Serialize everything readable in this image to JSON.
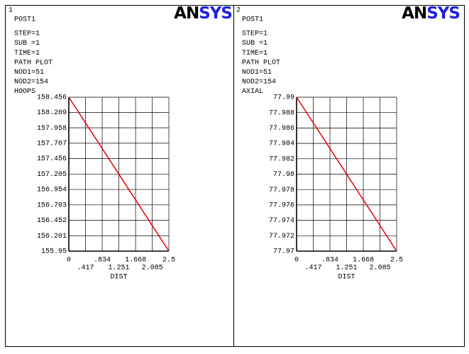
{
  "chart_data": [
    {
      "type": "line",
      "window": "1",
      "logo": [
        "AN",
        "SYS"
      ],
      "title": "POST1",
      "info": [
        "STEP=1",
        "SUB =1",
        "TIME=1",
        "PATH PLOT",
        "NOD1=51",
        "NOD2=154"
      ],
      "variable": "HOOPS",
      "xlabel": "DIST",
      "x": [
        0,
        2.5
      ],
      "values": [
        158.456,
        155.95
      ],
      "color": "#e00000",
      "xlim": [
        0,
        2.5
      ],
      "ylim": [
        155.95,
        158.456
      ],
      "xticks": [
        0,
        {
          "value": 0.417,
          "label": ".417"
        },
        {
          "value": 0.834,
          "label": ".834"
        },
        1.251,
        1.668,
        2.085,
        2.5
      ],
      "yticks": [
        155.95,
        156.201,
        156.452,
        156.703,
        156.954,
        157.205,
        157.456,
        157.707,
        157.958,
        158.209,
        158.456
      ],
      "grid": true
    },
    {
      "type": "line",
      "window": "2",
      "logo": [
        "AN",
        "SYS"
      ],
      "title": "POST1",
      "info": [
        "STEP=1",
        "SUB =1",
        "TIME=1",
        "PATH PLOT",
        "NOD1=51",
        "NOD2=154"
      ],
      "variable": "AXIAL",
      "xlabel": "DIST",
      "x": [
        0,
        2.5
      ],
      "values": [
        77.99,
        77.97
      ],
      "color": "#e00000",
      "xlim": [
        0,
        2.5
      ],
      "ylim": [
        77.97,
        77.99
      ],
      "xticks": [
        0,
        {
          "value": 0.417,
          "label": ".417"
        },
        {
          "value": 0.834,
          "label": ".834"
        },
        1.251,
        1.668,
        2.085,
        2.5
      ],
      "yticks": [
        77.97,
        77.972,
        77.974,
        77.976,
        77.978,
        77.98,
        77.982,
        77.984,
        77.986,
        77.988,
        77.99
      ],
      "grid": true
    }
  ]
}
